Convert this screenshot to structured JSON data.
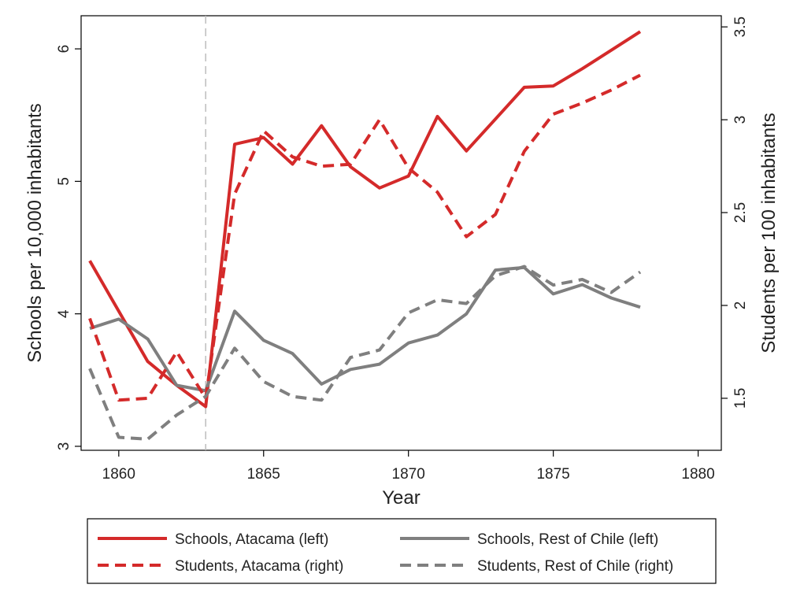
{
  "chart_data": {
    "type": "line",
    "title": "",
    "xlabel": "Year",
    "ylabel_left": "Schools per 10,000 inhabitants",
    "ylabel_right": "Students per 100 inhabitants",
    "xlim": [
      1858.7,
      1880.8
    ],
    "ylim_left": [
      2.97,
      6.25
    ],
    "ylim_right": [
      1.22,
      3.56
    ],
    "x_ticks": [
      1860,
      1865,
      1870,
      1875,
      1880
    ],
    "y_left_ticks": [
      3,
      4,
      5,
      6
    ],
    "y_right_ticks": [
      1.5,
      2,
      2.5,
      3,
      3.5
    ],
    "y_right_tick_labels": [
      "1.5",
      "2",
      "2.5",
      "3",
      "3.5"
    ],
    "reference_line_x": 1863,
    "grid": false,
    "legend_position": "bottom",
    "series": [
      {
        "name": "Schools, Atacama (left)",
        "axis": "left",
        "color": "#d42a2a",
        "dash": "solid",
        "x": [
          1859,
          1860,
          1861,
          1862,
          1863,
          1864,
          1865,
          1866,
          1867,
          1868,
          1869,
          1870,
          1871,
          1872,
          1873,
          1874,
          1875,
          1876,
          1877,
          1878
        ],
        "y": [
          4.4,
          4.02,
          3.64,
          3.46,
          3.3,
          5.28,
          5.33,
          5.13,
          5.42,
          5.11,
          4.95,
          5.04,
          5.49,
          5.23,
          5.47,
          5.71,
          5.72,
          5.85,
          5.99,
          6.13
        ]
      },
      {
        "name": "Schools, Rest of Chile (left)",
        "axis": "left",
        "color": "#7f7f7f",
        "dash": "solid",
        "x": [
          1859,
          1860,
          1861,
          1862,
          1863,
          1864,
          1865,
          1866,
          1867,
          1868,
          1869,
          1870,
          1871,
          1872,
          1873,
          1874,
          1875,
          1876,
          1877,
          1878
        ],
        "y": [
          3.89,
          3.96,
          3.81,
          3.46,
          3.42,
          4.02,
          3.8,
          3.7,
          3.47,
          3.58,
          3.62,
          3.78,
          3.84,
          4.0,
          4.33,
          4.35,
          4.15,
          4.22,
          4.12,
          4.05
        ]
      },
      {
        "name": "Students, Atacama (right)",
        "axis": "right",
        "color": "#d42a2a",
        "dash": "dashed",
        "x": [
          1859,
          1860,
          1861,
          1862,
          1863,
          1864,
          1865,
          1866,
          1867,
          1868,
          1869,
          1870,
          1871,
          1872,
          1873,
          1874,
          1875,
          1876,
          1877,
          1878
        ],
        "y": [
          1.93,
          1.49,
          1.5,
          1.75,
          1.5,
          2.6,
          2.94,
          2.8,
          2.75,
          2.76,
          3.0,
          2.74,
          2.61,
          2.37,
          2.49,
          2.83,
          3.03,
          3.09,
          3.16,
          3.24
        ]
      },
      {
        "name": "Students, Rest of Chile (right)",
        "axis": "right",
        "color": "#7f7f7f",
        "dash": "dashed",
        "x": [
          1859,
          1860,
          1861,
          1862,
          1863,
          1864,
          1865,
          1866,
          1867,
          1868,
          1869,
          1870,
          1871,
          1872,
          1873,
          1874,
          1875,
          1876,
          1877,
          1878
        ],
        "y": [
          1.66,
          1.29,
          1.28,
          1.41,
          1.51,
          1.77,
          1.59,
          1.51,
          1.49,
          1.72,
          1.76,
          1.96,
          2.03,
          2.01,
          2.16,
          2.21,
          2.11,
          2.14,
          2.07,
          2.18
        ]
      }
    ]
  }
}
